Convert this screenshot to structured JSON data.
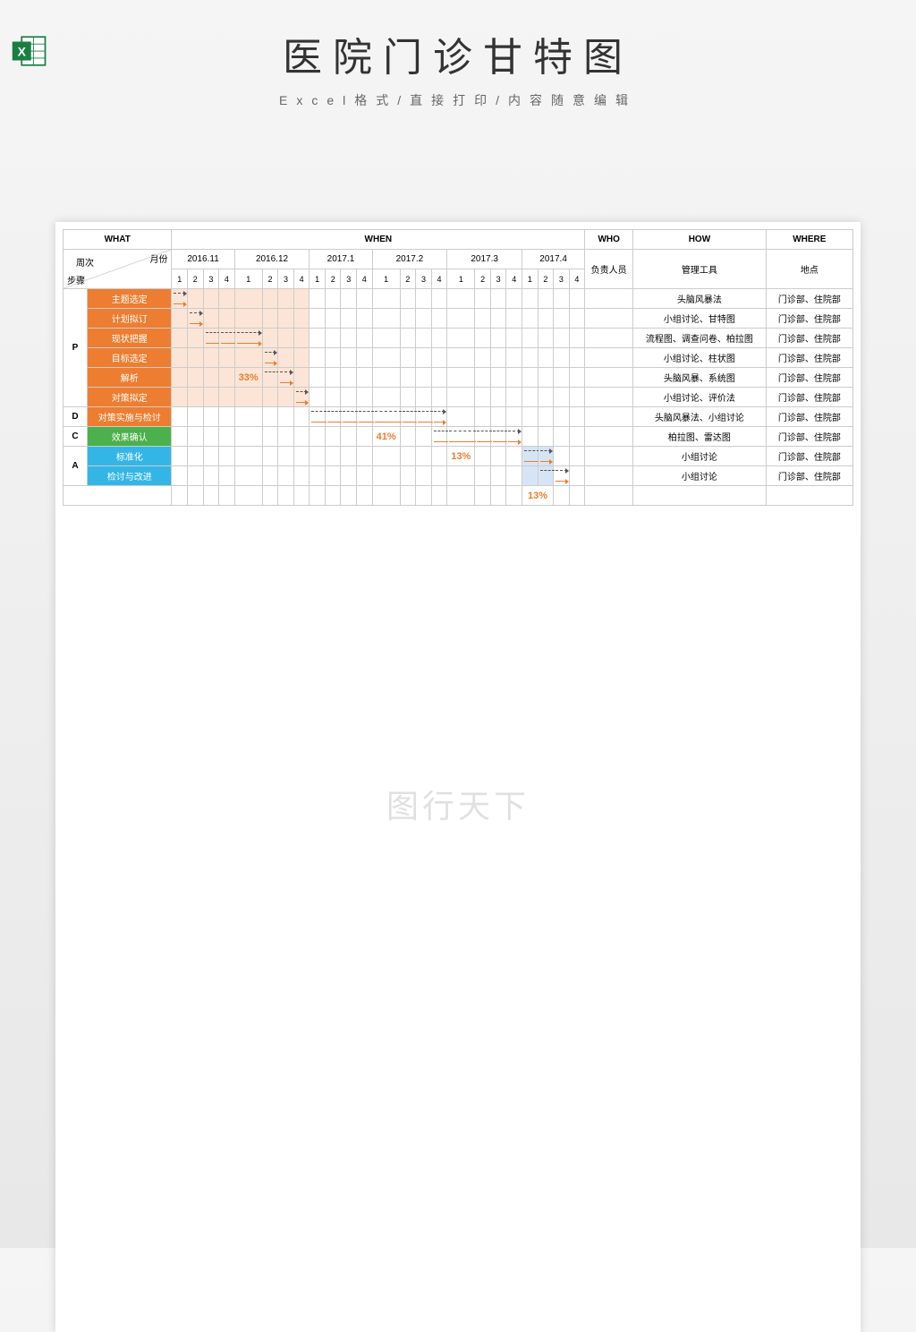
{
  "title": "医院门诊甘特图",
  "subtitle": "Excel格式/直接打印/内容随意编辑",
  "watermark": "图行天下",
  "headers": {
    "what": "WHAT",
    "when": "WHEN",
    "who": "WHO",
    "how": "HOW",
    "where": "WHERE",
    "weekLabel": "周次",
    "monthLabel": "月份",
    "stepLabel": "步骤",
    "whoLabel": "负责人员",
    "howLabel": "管理工具",
    "whereLabel": "地点"
  },
  "months": [
    "2016.11",
    "2016.12",
    "2017.1",
    "2017.2",
    "2017.3",
    "2017.4"
  ],
  "weeks": [
    "1",
    "2",
    "3",
    "4",
    "1",
    "2",
    "3",
    "4",
    "1",
    "2",
    "3",
    "4",
    "1",
    "2",
    "3",
    "4",
    "1",
    "2",
    "3",
    "4",
    "1",
    "2",
    "3",
    "4"
  ],
  "phases": [
    {
      "code": "P",
      "color": "#ffffff",
      "tasks": [
        {
          "name": "主题选定",
          "bg": "#ed7d31",
          "how": "头脑风暴法",
          "where": "门诊部、住院部",
          "dash": [
            0,
            0
          ],
          "solid": [
            0,
            0
          ],
          "shade": [
            0,
            7
          ]
        },
        {
          "name": "计划拟订",
          "bg": "#ed7d31",
          "how": "小组讨论、甘特图",
          "where": "门诊部、住院部",
          "dash": [
            1,
            1
          ],
          "solid": [
            1,
            1
          ],
          "shade": [
            0,
            7
          ]
        },
        {
          "name": "现状把握",
          "bg": "#ed7d31",
          "how": "流程图、调查问卷、柏拉图",
          "where": "门诊部、住院部",
          "dash": [
            2,
            4
          ],
          "solid": [
            2,
            4
          ],
          "shade": [
            0,
            7
          ]
        },
        {
          "name": "目标选定",
          "bg": "#ed7d31",
          "how": "小组讨论、柱状图",
          "where": "门诊部、住院部",
          "dash": [
            5,
            5
          ],
          "solid": [
            5,
            5
          ],
          "shade": [
            0,
            7
          ]
        },
        {
          "name": "解析",
          "bg": "#ed7d31",
          "how": "头脑风暴、系统图",
          "where": "门诊部、住院部",
          "dash": [
            5,
            6
          ],
          "solid": [
            6,
            6
          ],
          "shade": [
            0,
            7
          ],
          "pct": "33%",
          "pctCol": 4
        },
        {
          "name": "对策拟定",
          "bg": "#ed7d31",
          "how": "小组讨论、评价法",
          "where": "门诊部、住院部",
          "dash": [
            7,
            7
          ],
          "solid": [
            7,
            7
          ],
          "shade": [
            0,
            7
          ]
        }
      ]
    },
    {
      "code": "D",
      "color": "#ffffff",
      "tasks": [
        {
          "name": "对策实施与检讨",
          "bg": "#ed7d31",
          "how": "头脑风暴法、小组讨论",
          "where": "门诊部、住院部",
          "dash": [
            8,
            15
          ],
          "solid": [
            8,
            15
          ]
        }
      ]
    },
    {
      "code": "C",
      "color": "#ffffff",
      "tasks": [
        {
          "name": "效果确认",
          "bg": "#4cb04c",
          "how": "柏拉图、雷达图",
          "where": "门诊部、住院部",
          "dash": [
            15,
            19
          ],
          "solid": [
            15,
            19
          ],
          "pct": "41%",
          "pctCol": 12
        }
      ]
    },
    {
      "code": "A",
      "color": "#ffffff",
      "tasks": [
        {
          "name": "标准化",
          "bg": "#33b6e6",
          "how": "小组讨论",
          "where": "门诊部、住院部",
          "dash": [
            20,
            21
          ],
          "solid": [
            20,
            21
          ],
          "pct": "13%",
          "pctCol": 16,
          "shadeB": [
            20,
            21
          ]
        },
        {
          "name": "检讨与改进",
          "bg": "#33b6e6",
          "how": "小组讨论",
          "where": "门诊部、住院部",
          "dash": [
            21,
            22
          ],
          "solid": [
            22,
            22
          ],
          "shadeB": [
            20,
            21
          ]
        }
      ]
    }
  ],
  "bottomPct": {
    "value": "13%",
    "col": 20
  }
}
